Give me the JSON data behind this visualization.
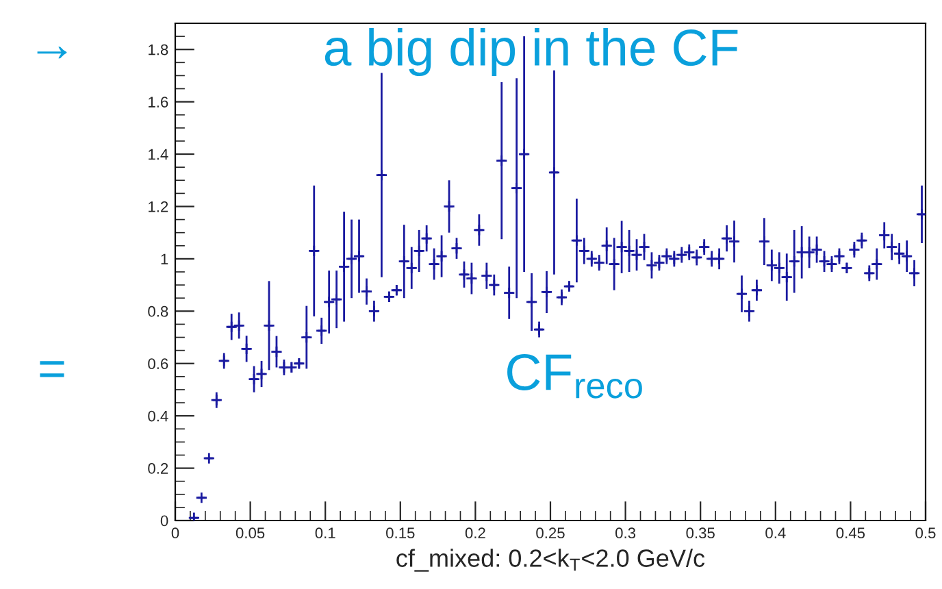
{
  "chart_data": {
    "type": "scatter",
    "xlabel": "cf_mixed: 0.2<k$_{T}$<2.0 GeV/c",
    "annotations": [
      "→",
      "a big dip in the CF",
      "=",
      "CF$_{reco}$"
    ],
    "xlim": [
      0,
      0.5
    ],
    "ylim": [
      0,
      1.9
    ],
    "xticks": [
      0,
      0.05,
      0.1,
      0.15,
      0.2,
      0.25,
      0.3,
      0.35,
      0.4,
      0.45,
      0.5
    ],
    "yticks": [
      0,
      0.2,
      0.4,
      0.6,
      0.8,
      1,
      1.2,
      1.4,
      1.6,
      1.8
    ],
    "marker": "cross",
    "series": [
      {
        "color": "#1a1aa0",
        "x": [
          0.0125,
          0.0175,
          0.0225,
          0.0275,
          0.0325,
          0.0375,
          0.0425,
          0.0475,
          0.0525,
          0.0575,
          0.0625,
          0.0675,
          0.0725,
          0.0775,
          0.0825,
          0.0875,
          0.0925,
          0.0975,
          0.1025,
          0.1075,
          0.1125,
          0.1175,
          0.1225,
          0.1275,
          0.1325,
          0.1375,
          0.1425,
          0.1475,
          0.1525,
          0.1575,
          0.1625,
          0.1675,
          0.1725,
          0.1775,
          0.1825,
          0.1875,
          0.1925,
          0.1975,
          0.2025,
          0.2075,
          0.2125,
          0.2175,
          0.2225,
          0.2275,
          0.2325,
          0.2375,
          0.2425,
          0.2475,
          0.2525,
          0.2575,
          0.2625,
          0.2675,
          0.2725,
          0.2775,
          0.2825,
          0.2875,
          0.2925,
          0.2975,
          0.3025,
          0.3075,
          0.3125,
          0.3175,
          0.3225,
          0.3275,
          0.3325,
          0.3375,
          0.3425,
          0.3475,
          0.3525,
          0.3575,
          0.3625,
          0.3675,
          0.3725,
          0.3775,
          0.3825,
          0.3875,
          0.3925,
          0.3975,
          0.4025,
          0.4075,
          0.4125,
          0.4175,
          0.4225,
          0.4275,
          0.4325,
          0.4375,
          0.4425,
          0.4475,
          0.4525,
          0.4575,
          0.4625,
          0.4675,
          0.4725,
          0.4775,
          0.4825,
          0.4875,
          0.4925,
          0.4975
        ],
        "values": [
          0.01,
          0.087,
          0.238,
          0.46,
          0.61,
          0.74,
          0.745,
          0.656,
          0.54,
          0.56,
          0.745,
          0.645,
          0.585,
          0.585,
          0.6,
          0.7,
          1.03,
          0.725,
          0.835,
          0.845,
          0.97,
          1.0,
          1.01,
          0.875,
          0.8,
          1.32,
          0.855,
          0.88,
          0.99,
          0.965,
          1.03,
          1.078,
          0.98,
          1.01,
          1.2,
          1.04,
          0.94,
          0.925,
          1.11,
          0.935,
          0.9,
          1.375,
          0.87,
          1.27,
          1.4,
          0.835,
          0.73,
          0.873,
          1.33,
          0.853,
          0.895,
          1.07,
          1.03,
          1.0,
          0.985,
          1.05,
          0.98,
          1.045,
          1.03,
          1.015,
          1.045,
          0.975,
          0.985,
          1.01,
          1.0,
          1.015,
          1.025,
          1.005,
          1.045,
          1.0,
          1.0,
          1.078,
          1.066,
          0.866,
          0.8,
          0.88,
          1.066,
          0.975,
          0.965,
          0.93,
          0.99,
          1.025,
          1.025,
          1.035,
          0.99,
          0.98,
          1.01,
          0.965,
          1.035,
          1.07,
          0.945,
          0.98,
          1.09,
          1.045,
          1.02,
          1.01,
          0.945,
          1.17
        ],
        "errors": [
          0.005,
          0.005,
          0.006,
          0.03,
          0.03,
          0.05,
          0.05,
          0.05,
          0.05,
          0.05,
          0.17,
          0.06,
          0.03,
          0.02,
          0.02,
          0.12,
          0.25,
          0.05,
          0.12,
          0.11,
          0.21,
          0.15,
          0.14,
          0.05,
          0.04,
          0.39,
          0.02,
          0.02,
          0.14,
          0.08,
          0.08,
          0.05,
          0.06,
          0.08,
          0.1,
          0.04,
          0.05,
          0.06,
          0.06,
          0.05,
          0.04,
          0.3,
          0.1,
          0.42,
          0.45,
          0.11,
          0.03,
          0.08,
          0.39,
          0.03,
          0.02,
          0.16,
          0.05,
          0.03,
          0.03,
          0.07,
          0.1,
          0.1,
          0.08,
          0.06,
          0.05,
          0.05,
          0.03,
          0.03,
          0.03,
          0.03,
          0.03,
          0.03,
          0.03,
          0.03,
          0.04,
          0.05,
          0.08,
          0.07,
          0.04,
          0.04,
          0.09,
          0.06,
          0.06,
          0.09,
          0.12,
          0.1,
          0.06,
          0.05,
          0.04,
          0.03,
          0.03,
          0.02,
          0.03,
          0.03,
          0.03,
          0.06,
          0.05,
          0.05,
          0.04,
          0.06,
          0.05,
          0.11
        ],
        "xerrors": [
          0.0025,
          0.0025,
          0.0025,
          0.0025,
          0.0025,
          0.0025,
          0.0025,
          0.0025,
          0.0025,
          0.0025,
          0.0025,
          0.0025,
          0.0025,
          0.0025,
          0.0025,
          0.0025,
          0.0025,
          0.0025,
          0.0025,
          0.0025,
          0.0025,
          0.0025,
          0.0025,
          0.0025,
          0.0025,
          0.0025,
          0.0025,
          0.0025,
          0.0025,
          0.0025,
          0.0025,
          0.0025,
          0.0025,
          0.0025,
          0.0025,
          0.0025,
          0.0025,
          0.0025,
          0.0025,
          0.0025,
          0.0025,
          0.0025,
          0.0025,
          0.0025,
          0.0025,
          0.0025,
          0.0025,
          0.0025,
          0.0025,
          0.0025,
          0.0025,
          0.0025,
          0.0025,
          0.0025,
          0.0025,
          0.0025,
          0.0025,
          0.0025,
          0.0025,
          0.0025,
          0.0025,
          0.0025,
          0.0025,
          0.0025,
          0.0025,
          0.0025,
          0.0025,
          0.0025,
          0.0025,
          0.0025,
          0.0025,
          0.0025,
          0.0025,
          0.0025,
          0.0025,
          0.0025,
          0.0025,
          0.0025,
          0.0025,
          0.0025,
          0.0025,
          0.0025,
          0.0025,
          0.0025,
          0.0025,
          0.0025,
          0.0025,
          0.0025,
          0.0025,
          0.0025,
          0.0025,
          0.0025,
          0.0025,
          0.0025,
          0.0025,
          0.0025,
          0.0025,
          0.0025
        ]
      }
    ]
  }
}
